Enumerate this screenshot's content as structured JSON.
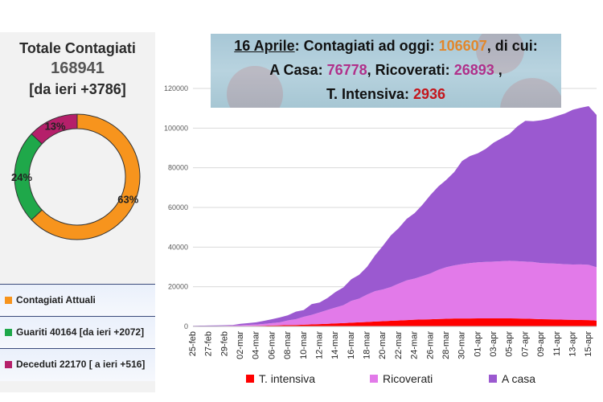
{
  "summary": {
    "title": "Totale Contagiati",
    "total": "168941",
    "delta": "[da ieri +3786]"
  },
  "donut": {
    "slices": [
      {
        "name": "Contagiati Attuali",
        "label": "63%",
        "value": 63,
        "color": "#f7941d"
      },
      {
        "name": "Guariti",
        "label": "24%",
        "value": 24,
        "color": "#1fa84a"
      },
      {
        "name": "Deceduti",
        "label": "13%",
        "value": 13,
        "color": "#b51f6a"
      }
    ]
  },
  "legend": [
    {
      "text": "Contagiati Attuali",
      "color": "#f7941d"
    },
    {
      "text": "Guariti 40164 [da ieri +2072]",
      "color": "#1fa84a"
    },
    {
      "text": "Deceduti 22170 [ a ieri +516]",
      "color": "#b51f6a"
    }
  ],
  "headline": {
    "date": "16 Aprile",
    "p1": ": Contagiati ad oggi: ",
    "current": "106607",
    "p2": ", di cui:",
    "home_label": "A Casa: ",
    "home": "76778",
    "hosp_label": ", Ricoverati: ",
    "hosp": "26893",
    "hosp_tail": " ,",
    "icu_label": "T. Intensiva: ",
    "icu": "2936"
  },
  "chart_data": {
    "type": "area",
    "stacked": true,
    "x": [
      "25-feb",
      "26-feb",
      "27-feb",
      "28-feb",
      "29-feb",
      "01-mar",
      "02-mar",
      "03-mar",
      "04-mar",
      "05-mar",
      "06-mar",
      "07-mar",
      "08-mar",
      "09-mar",
      "10-mar",
      "11-mar",
      "12-mar",
      "13-mar",
      "14-mar",
      "15-mar",
      "16-mar",
      "17-mar",
      "18-mar",
      "19-mar",
      "20-mar",
      "21-mar",
      "22-mar",
      "23-mar",
      "24-mar",
      "25-mar",
      "26-mar",
      "27-mar",
      "28-mar",
      "29-mar",
      "30-mar",
      "31-mar",
      "01-apr",
      "02-apr",
      "03-apr",
      "04-apr",
      "05-apr",
      "06-apr",
      "07-apr",
      "08-apr",
      "09-apr",
      "10-apr",
      "11-apr",
      "12-apr",
      "13-apr",
      "14-apr",
      "15-apr",
      "16-apr"
    ],
    "x_tick_labels": [
      "25-feb",
      "27-feb",
      "29-feb",
      "02-mar",
      "04-mar",
      "06-mar",
      "08-mar",
      "10-mar",
      "12-mar",
      "14-mar",
      "16-mar",
      "18-mar",
      "20-mar",
      "22-mar",
      "24-mar",
      "26-mar",
      "28-mar",
      "30-mar",
      "01-apr",
      "03-apr",
      "05-apr",
      "07-apr",
      "09-apr",
      "11-apr",
      "13-apr",
      "15-apr"
    ],
    "series": [
      {
        "name": "T. intensiva",
        "color": "#ff0000",
        "values": [
          30,
          35,
          50,
          60,
          100,
          140,
          170,
          230,
          300,
          350,
          460,
          570,
          650,
          730,
          880,
          1030,
          1150,
          1330,
          1520,
          1670,
          1850,
          2060,
          2250,
          2500,
          2660,
          2860,
          3010,
          3200,
          3400,
          3490,
          3610,
          3730,
          3860,
          3980,
          4020,
          4020,
          4030,
          4050,
          4070,
          4070,
          4070,
          4000,
          3900,
          3800,
          3650,
          3600,
          3500,
          3380,
          3340,
          3260,
          3180,
          2936
        ]
      },
      {
        "name": "Ricoverati",
        "color": "#e27ae9",
        "values": [
          90,
          100,
          110,
          140,
          200,
          300,
          440,
          560,
          680,
          900,
          1200,
          1500,
          2400,
          2900,
          4000,
          4800,
          5900,
          7000,
          8000,
          9000,
          11000,
          12000,
          13800,
          15300,
          16000,
          17000,
          18600,
          20000,
          20700,
          21900,
          23100,
          24800,
          26000,
          26800,
          27400,
          27900,
          28300,
          28500,
          28600,
          28800,
          29000,
          28900,
          28800,
          28700,
          28300,
          28200,
          28100,
          28000,
          27900,
          28000,
          27900,
          26893
        ]
      },
      {
        "name": "A casa",
        "color": "#9b59d0",
        "values": [
          200,
          250,
          300,
          300,
          300,
          250,
          700,
          900,
          1100,
          1600,
          2000,
          2500,
          2600,
          3800,
          3400,
          5400,
          5000,
          6000,
          7800,
          9000,
          10900,
          12000,
          14000,
          18000,
          22000,
          26000,
          28000,
          31000,
          33000,
          36000,
          39500,
          42000,
          44000,
          47000,
          52000,
          54000,
          55000,
          57000,
          60000,
          62000,
          64000,
          68000,
          71000,
          71000,
          72000,
          73000,
          74500,
          76000,
          78000,
          79000,
          80000,
          76778
        ]
      }
    ],
    "ylim": [
      0,
      120000
    ],
    "y_ticks": [
      0,
      20000,
      40000,
      60000,
      80000,
      100000,
      120000
    ],
    "grid": true,
    "legend_position": "bottom"
  }
}
